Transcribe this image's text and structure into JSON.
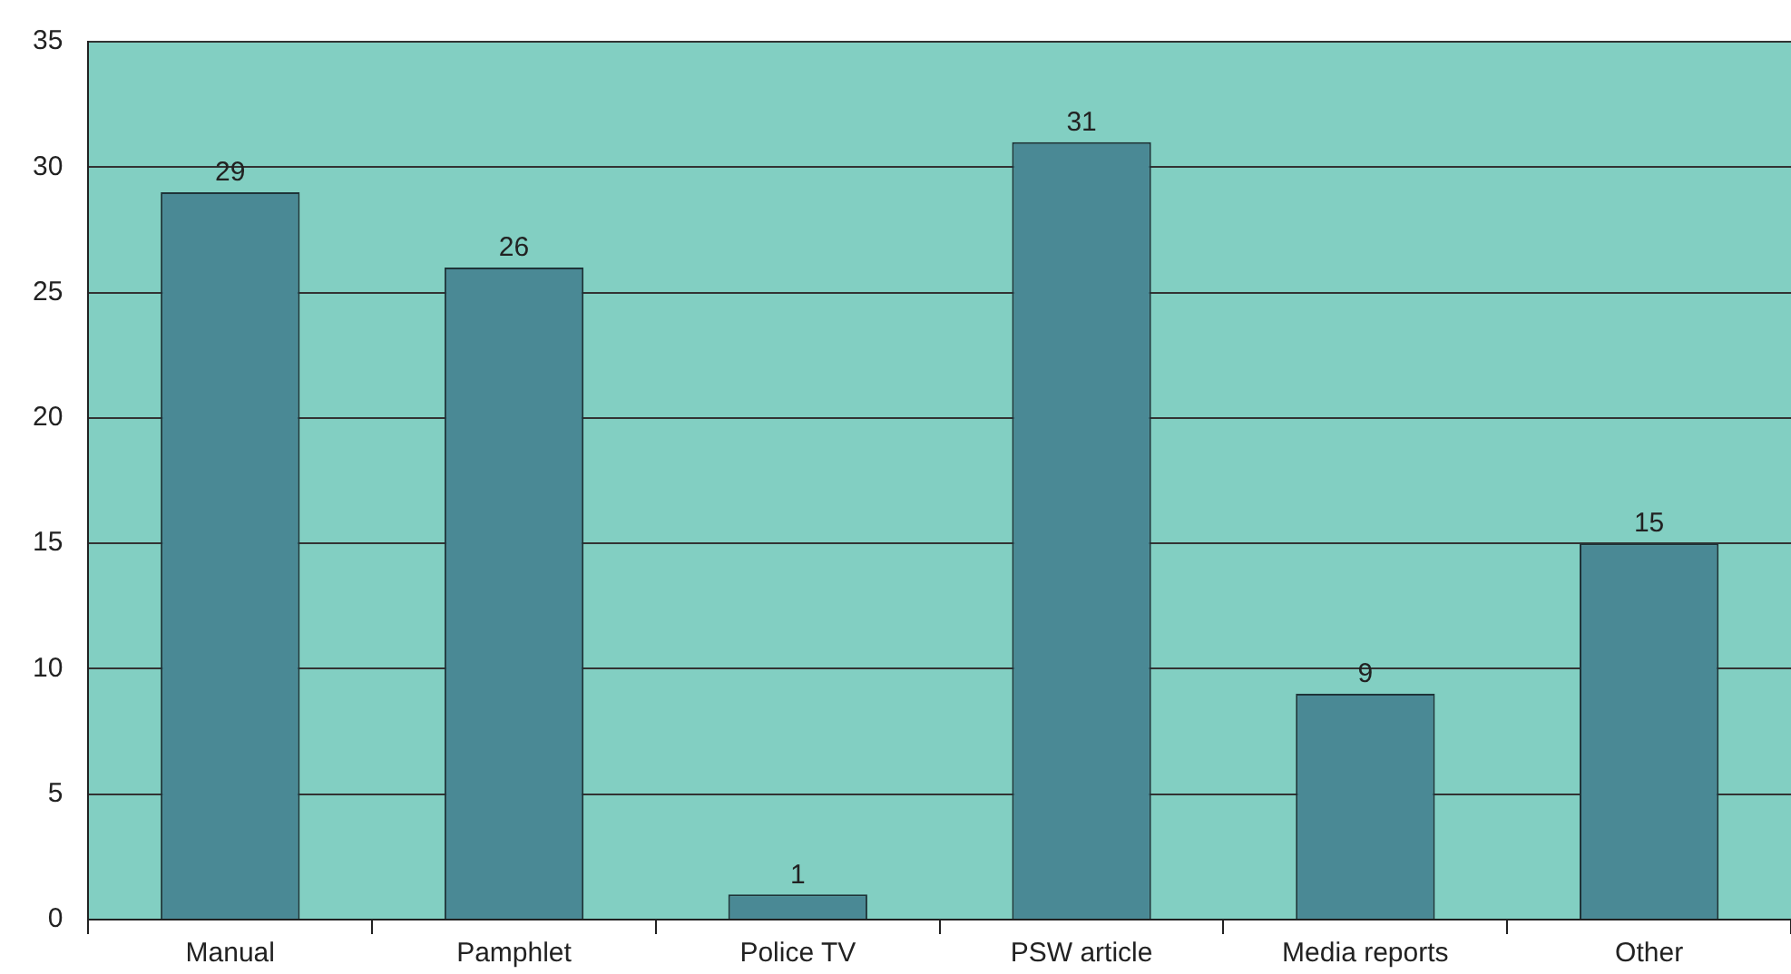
{
  "chart_data": {
    "type": "bar",
    "categories": [
      "Manual",
      "Pamphlet",
      "Police TV",
      "PSW article",
      "Media reports",
      "Other"
    ],
    "values": [
      29,
      26,
      1,
      31,
      9,
      15
    ],
    "color": "#4a8995",
    "ylim": [
      0,
      35
    ],
    "yticks": [
      0,
      5,
      10,
      15,
      20,
      25,
      30,
      35
    ],
    "grid": "y",
    "data_labels": true
  }
}
